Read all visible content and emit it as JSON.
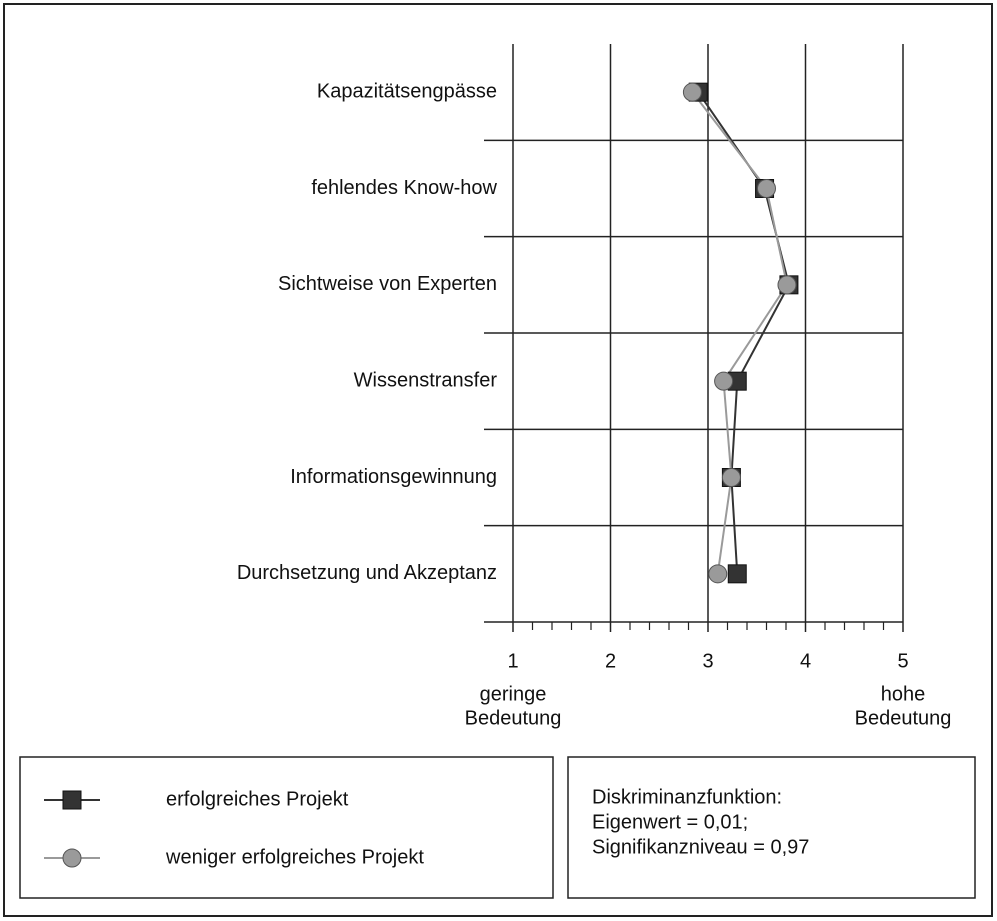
{
  "chart_data": {
    "type": "line",
    "orientation": "horizontal",
    "categories": [
      "Kapazitätsengpässe",
      "fehlendes Know-how",
      "Sichtweise von Experten",
      "Wissenstransfer",
      "Informationsgewinnung",
      "Durchsetzung und Akzeptanz"
    ],
    "series": [
      {
        "name": "erfolgreiches Projekt",
        "color": "#333333",
        "marker": "square",
        "values": [
          2.9,
          3.58,
          3.83,
          3.3,
          3.24,
          3.3
        ]
      },
      {
        "name": "weniger erfolgreiches Projekt",
        "color": "#9a9a9a",
        "marker": "circle",
        "values": [
          2.84,
          3.6,
          3.81,
          3.16,
          3.24,
          3.1
        ]
      }
    ],
    "xlim": [
      1,
      5
    ],
    "xticks": [
      1,
      2,
      3,
      4,
      5
    ],
    "xminorticks": [
      1.2,
      1.4,
      1.6,
      1.8,
      2.2,
      2.4,
      2.6,
      2.8,
      3.2,
      3.4,
      3.6,
      3.8,
      4.2,
      4.4,
      4.6,
      4.8
    ],
    "x_label_low": [
      "geringe",
      "Bedeutung"
    ],
    "x_label_high": [
      "hohe",
      "Bedeutung"
    ],
    "grid": true,
    "annotation": [
      "Diskriminanzfunktion:",
      "Eigenwert = 0,01;",
      "Signifikanzniveau = 0,97"
    ]
  }
}
